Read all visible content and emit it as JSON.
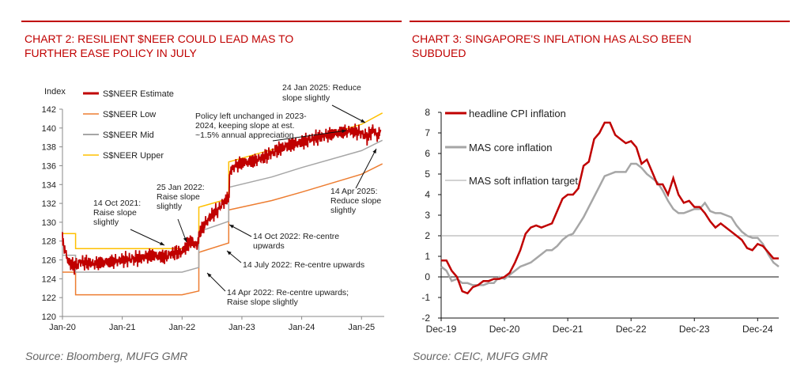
{
  "colors": {
    "accent": "#c00000",
    "estimate": "#c00000",
    "low": "#ed7d31",
    "mid": "#a6a6a6",
    "upper": "#ffc000",
    "core": "#a6a6a6",
    "target": "#a6a6a6"
  },
  "left_chart": {
    "title_line1": "CHART 2: RESILIENT $NEER COULD LEAD MAS TO",
    "title_line2": "FURTHER EASE POLICY IN JULY",
    "source": "Source: Bloomberg, MUFG GMR"
  },
  "right_chart": {
    "title_line1": "CHART 3: SINGAPORE'S INFLATION HAS ALSO BEEN",
    "title_line2": "SUBDUED",
    "source": "Source: CEIC, MUFG GMR"
  },
  "chart_data": [
    {
      "type": "line",
      "ylabel": "Index",
      "ylim": [
        120,
        142
      ],
      "yticks": [
        "120",
        "122",
        "124",
        "126",
        "128",
        "130",
        "132",
        "134",
        "136",
        "138",
        "140",
        "142"
      ],
      "xticks": [
        "Jan-20",
        "Jan-21",
        "Jan-22",
        "Jan-23",
        "Jan-24",
        "Jan-25"
      ],
      "xrange": [
        2020.0,
        2025.38
      ],
      "grid": false,
      "legend": "top-left",
      "series": [
        {
          "name": "S$NEER Estimate",
          "x": [
            2020.0,
            2020.05,
            2020.1,
            2020.2,
            2020.3,
            2020.5,
            2020.8,
            2021.0,
            2021.3,
            2021.5,
            2021.7,
            2021.8,
            2021.9,
            2022.0,
            2022.07,
            2022.15,
            2022.25,
            2022.3,
            2022.4,
            2022.5,
            2022.6,
            2022.7,
            2022.78,
            2022.8,
            2022.9,
            2023.0,
            2023.2,
            2023.4,
            2023.6,
            2023.8,
            2024.0,
            2024.2,
            2024.4,
            2024.6,
            2024.8,
            2025.0,
            2025.1,
            2025.2,
            2025.25,
            2025.3,
            2025.32
          ],
          "values": [
            128.2,
            126.8,
            125.8,
            125.3,
            125.8,
            125.6,
            125.8,
            126.0,
            126.2,
            126.5,
            126.3,
            126.6,
            126.8,
            126.8,
            127.5,
            128.0,
            127.5,
            129.0,
            130.0,
            130.8,
            131.3,
            132.2,
            132.5,
            135.5,
            136.0,
            136.3,
            136.5,
            137.0,
            137.7,
            138.2,
            138.5,
            138.9,
            139.2,
            139.5,
            139.7,
            139.5,
            139.0,
            139.9,
            139.2,
            139.3,
            139.8
          ]
        },
        {
          "name": "S$NEER Low",
          "x": [
            2020.0,
            2020.22,
            2020.22,
            2021.0,
            2022.0,
            2022.28,
            2022.28,
            2022.78,
            2022.78,
            2023.5,
            2024.0,
            2025.0,
            2025.35
          ],
          "values": [
            124.7,
            124.7,
            122.3,
            122.3,
            122.3,
            122.7,
            126.8,
            127.8,
            131.3,
            132.3,
            133.2,
            135.1,
            136.2
          ]
        },
        {
          "name": "S$NEER Mid",
          "x": [
            2020.0,
            2020.22,
            2020.22,
            2021.0,
            2022.0,
            2022.28,
            2022.28,
            2022.78,
            2022.78,
            2023.5,
            2024.0,
            2025.0,
            2025.35
          ],
          "values": [
            126.5,
            126.5,
            124.7,
            124.7,
            124.7,
            125.2,
            129.0,
            130.1,
            133.7,
            134.8,
            135.8,
            137.6,
            138.7
          ]
        },
        {
          "name": "S$NEER Upper",
          "x": [
            2020.0,
            2020.22,
            2020.22,
            2021.0,
            2022.0,
            2022.28,
            2022.28,
            2022.78,
            2022.78,
            2023.5,
            2024.0,
            2025.0,
            2025.35
          ],
          "values": [
            128.8,
            128.8,
            127.2,
            127.2,
            127.2,
            127.8,
            131.6,
            132.5,
            136.4,
            137.7,
            138.5,
            140.4,
            141.6
          ]
        }
      ],
      "annotations": [
        {
          "text": [
            "24 Jan 2025: Reduce",
            "slope slightly"
          ]
        },
        {
          "text": [
            "Policy left unchanged in 2023-",
            "2024, keeping slope at est.",
            "~1.5% annual appreciation"
          ]
        },
        {
          "text": [
            "25 Jan 2022:",
            "Raise slope",
            "slightly"
          ]
        },
        {
          "text": [
            "14 Oct 2021:",
            "Raise slope",
            "slightly"
          ]
        },
        {
          "text": [
            "14 Apr 2025:",
            "Reduce slope",
            "slightly"
          ]
        },
        {
          "text": [
            "14 Oct 2022: Re-centre",
            "upwards"
          ]
        },
        {
          "text": [
            "14 July 2022: Re-centre upwards"
          ]
        },
        {
          "text": [
            "14 Apr 2022: Re-centre upwards;",
            "Raise slope slightly"
          ]
        }
      ]
    },
    {
      "type": "line",
      "ylim": [
        -2,
        8
      ],
      "yticks": [
        "-2",
        "-1",
        "0",
        "1",
        "2",
        "3",
        "4",
        "5",
        "6",
        "7",
        "8"
      ],
      "xticks": [
        "Dec-19",
        "Dec-20",
        "Dec-21",
        "Dec-22",
        "Dec-23",
        "Dec-24"
      ],
      "xrange": [
        0,
        64
      ],
      "x_unit": "months since Dec-19",
      "hlines": [
        0,
        2
      ],
      "grid": false,
      "legend": "top-left",
      "series": [
        {
          "name": "headline CPI inflation",
          "x": [
            0,
            1,
            2,
            3,
            4,
            5,
            6,
            7,
            8,
            9,
            10,
            11,
            12,
            13,
            14,
            15,
            16,
            17,
            18,
            19,
            20,
            21,
            22,
            23,
            24,
            25,
            26,
            27,
            28,
            29,
            30,
            31,
            32,
            33,
            34,
            35,
            36,
            37,
            38,
            39,
            40,
            41,
            42,
            43,
            44,
            45,
            46,
            47,
            48,
            49,
            50,
            51,
            52,
            53,
            54,
            55,
            56,
            57,
            58,
            59,
            60,
            61,
            62,
            63,
            64
          ],
          "values": [
            0.8,
            0.8,
            0.3,
            -0.0,
            -0.7,
            -0.8,
            -0.5,
            -0.4,
            -0.2,
            -0.2,
            -0.1,
            -0.1,
            0.0,
            0.2,
            0.7,
            1.3,
            2.1,
            2.4,
            2.5,
            2.4,
            2.5,
            2.6,
            3.2,
            3.8,
            4.0,
            4.0,
            4.3,
            5.4,
            5.6,
            6.7,
            7.0,
            7.5,
            7.5,
            6.9,
            6.7,
            6.5,
            6.6,
            6.3,
            5.5,
            5.7,
            5.1,
            4.5,
            4.5,
            4.0,
            4.8,
            4.0,
            3.6,
            3.7,
            3.4,
            3.4,
            3.1,
            2.7,
            2.4,
            2.6,
            2.4,
            2.2,
            2.0,
            1.8,
            1.4,
            1.3,
            1.6,
            1.5,
            1.2,
            0.9,
            0.9
          ]
        },
        {
          "name": "MAS core inflation",
          "x": [
            0,
            1,
            2,
            3,
            4,
            5,
            6,
            7,
            8,
            9,
            10,
            11,
            12,
            13,
            14,
            15,
            16,
            17,
            18,
            19,
            20,
            21,
            22,
            23,
            24,
            25,
            26,
            27,
            28,
            29,
            30,
            31,
            32,
            33,
            34,
            35,
            36,
            37,
            38,
            39,
            40,
            41,
            42,
            43,
            44,
            45,
            46,
            47,
            48,
            49,
            50,
            51,
            52,
            53,
            54,
            55,
            56,
            57,
            58,
            59,
            60,
            61,
            62,
            63,
            64
          ],
          "values": [
            0.5,
            0.3,
            -0.2,
            -0.1,
            -0.3,
            -0.3,
            -0.4,
            -0.4,
            -0.4,
            -0.3,
            -0.3,
            -0.0,
            -0.1,
            0.1,
            0.3,
            0.5,
            0.6,
            0.7,
            0.9,
            1.1,
            1.3,
            1.3,
            1.5,
            1.8,
            2.0,
            2.1,
            2.5,
            2.9,
            3.4,
            3.9,
            4.4,
            4.9,
            5.0,
            5.1,
            5.1,
            5.1,
            5.5,
            5.5,
            5.3,
            5.0,
            4.8,
            4.6,
            4.2,
            3.7,
            3.3,
            3.1,
            3.1,
            3.2,
            3.3,
            3.3,
            3.6,
            3.2,
            3.1,
            3.1,
            3.0,
            2.9,
            2.5,
            2.2,
            2.0,
            1.9,
            1.9,
            1.6,
            1.1,
            0.7,
            0.5
          ]
        },
        {
          "name": "MAS soft inflation target",
          "x": [
            0,
            64
          ],
          "values": [
            2,
            2
          ]
        }
      ]
    }
  ]
}
